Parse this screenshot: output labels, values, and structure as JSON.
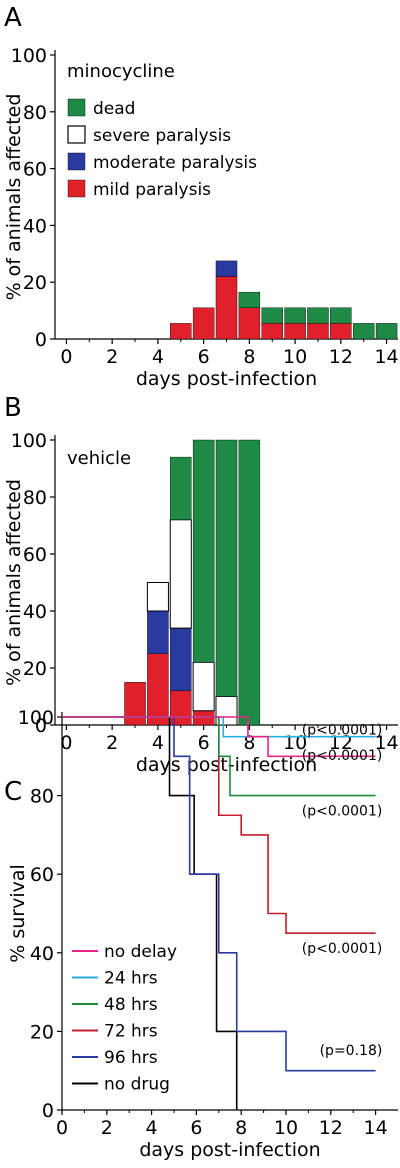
{
  "chart_data": [
    {
      "panel": "A",
      "type": "bar",
      "stacked": true,
      "title": "minocycline",
      "xlabel": "days post-infection",
      "ylabel": "% of animals affected",
      "xlim": [
        -0.5,
        14.5
      ],
      "ylim": [
        0,
        100
      ],
      "xticks": [
        "0",
        "2",
        "4",
        "6",
        "8",
        "10",
        "12",
        "14"
      ],
      "yticks": [
        "0",
        "20",
        "40",
        "60",
        "80",
        "100"
      ],
      "x": [
        5,
        6,
        7,
        8,
        9,
        10,
        11,
        12,
        13,
        14
      ],
      "series": [
        {
          "name": "mild paralysis",
          "color": "#e0202a",
          "values": [
            5.5,
            11,
            22,
            11,
            5.5,
            5.5,
            5.5,
            5.5,
            0,
            0
          ]
        },
        {
          "name": "moderate paralysis",
          "color": "#2a3ba0",
          "values": [
            0,
            0,
            5.5,
            0,
            0,
            0,
            0,
            0,
            0,
            0
          ]
        },
        {
          "name": "severe paralysis",
          "color": "#ffffff",
          "values": [
            0,
            0,
            0,
            0,
            0,
            0,
            0,
            0,
            0,
            0
          ]
        },
        {
          "name": "dead",
          "color": "#1f8a45",
          "values": [
            0,
            0,
            0,
            5.5,
            5.5,
            5.5,
            5.5,
            5.5,
            5.5,
            5.5
          ]
        }
      ],
      "legend": [
        "dead",
        "severe paralysis",
        "moderate paralysis",
        "mild paralysis"
      ],
      "legend_position": "top-left"
    },
    {
      "panel": "B",
      "type": "bar",
      "stacked": true,
      "title": "vehicle",
      "xlabel": "days post-infection",
      "ylabel": "% of animals affected",
      "xlim": [
        -0.5,
        14.5
      ],
      "ylim": [
        0,
        100
      ],
      "xticks": [
        "0",
        "2",
        "4",
        "6",
        "8",
        "10",
        "12",
        "14"
      ],
      "yticks": [
        "0",
        "20",
        "40",
        "60",
        "80",
        "100"
      ],
      "x": [
        3,
        4,
        5,
        6,
        7,
        8
      ],
      "series": [
        {
          "name": "mild paralysis",
          "color": "#e0202a",
          "values": [
            15,
            25,
            12,
            5,
            0,
            0
          ]
        },
        {
          "name": "moderate paralysis",
          "color": "#2a3ba0",
          "values": [
            0,
            15,
            22,
            0,
            0,
            0
          ]
        },
        {
          "name": "severe paralysis",
          "color": "#ffffff",
          "values": [
            0,
            10,
            38,
            17,
            10,
            0
          ]
        },
        {
          "name": "dead",
          "color": "#1f8a45",
          "values": [
            0,
            0,
            22,
            78,
            90,
            100
          ]
        }
      ]
    },
    {
      "panel": "C",
      "type": "line",
      "step": true,
      "xlabel": "days post-infection",
      "ylabel": "% survival",
      "xlim": [
        0,
        15
      ],
      "ylim": [
        0,
        100
      ],
      "xticks": [
        "0",
        "2",
        "4",
        "6",
        "8",
        "10",
        "12",
        "14"
      ],
      "yticks": [
        "0",
        "20",
        "40",
        "60",
        "80",
        "100"
      ],
      "series": [
        {
          "name": "no delay",
          "color": "#e8248a",
          "x": [
            0,
            8.3,
            9.2,
            14
          ],
          "y": [
            100,
            95,
            90,
            90
          ],
          "annotation": "(p<0.0001)"
        },
        {
          "name": "24 hrs",
          "color": "#27aee3",
          "x": [
            0,
            7.2,
            14
          ],
          "y": [
            100,
            95,
            95
          ],
          "annotation": "(p<0.0001)"
        },
        {
          "name": "48 hrs",
          "color": "#1e8a3a",
          "x": [
            0,
            7.0,
            7.5,
            14
          ],
          "y": [
            100,
            90,
            80,
            80
          ],
          "annotation": "(p<0.0001)"
        },
        {
          "name": "72 hrs",
          "color": "#c41e2a",
          "x": [
            0,
            7.0,
            8.0,
            9.2,
            10.0,
            14
          ],
          "y": [
            100,
            75,
            70,
            50,
            45,
            45
          ],
          "annotation": "(p<0.0001)"
        },
        {
          "name": "96 hrs",
          "color": "#2a3ba0",
          "x": [
            0,
            5.0,
            5.7,
            7.0,
            7.8,
            10.0,
            14
          ],
          "y": [
            100,
            90,
            60,
            40,
            20,
            10,
            10
          ],
          "annotation": "(p=0.18)"
        },
        {
          "name": "no drug",
          "color": "#000000",
          "x": [
            0,
            4.8,
            5.9,
            6.9,
            7.8
          ],
          "y": [
            100,
            80,
            60,
            20,
            0
          ]
        }
      ],
      "legend_position": "lower-left"
    }
  ]
}
